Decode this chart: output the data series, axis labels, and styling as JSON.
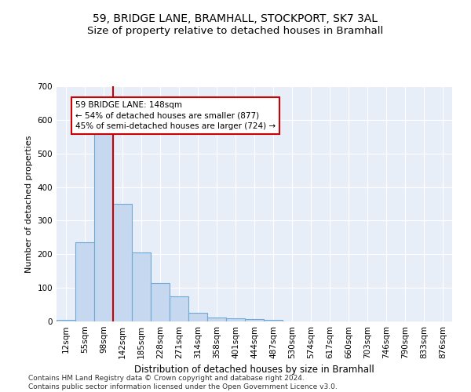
{
  "title1": "59, BRIDGE LANE, BRAMHALL, STOCKPORT, SK7 3AL",
  "title2": "Size of property relative to detached houses in Bramhall",
  "xlabel": "Distribution of detached houses by size in Bramhall",
  "ylabel": "Number of detached properties",
  "categories": [
    "12sqm",
    "55sqm",
    "98sqm",
    "142sqm",
    "185sqm",
    "228sqm",
    "271sqm",
    "314sqm",
    "358sqm",
    "401sqm",
    "444sqm",
    "487sqm",
    "530sqm",
    "574sqm",
    "617sqm",
    "660sqm",
    "703sqm",
    "746sqm",
    "790sqm",
    "833sqm",
    "876sqm"
  ],
  "values": [
    5,
    235,
    590,
    350,
    205,
    115,
    75,
    25,
    12,
    10,
    8,
    5,
    0,
    0,
    0,
    0,
    0,
    0,
    0,
    0,
    0
  ],
  "bar_color": "#c5d8ef",
  "bar_edge_color": "#6faad4",
  "vline_color": "#cc0000",
  "annotation_text": "59 BRIDGE LANE: 148sqm\n← 54% of detached houses are smaller (877)\n45% of semi-detached houses are larger (724) →",
  "annotation_box_color": "#ffffff",
  "annotation_box_edge": "#cc0000",
  "ylim": [
    0,
    700
  ],
  "yticks": [
    0,
    100,
    200,
    300,
    400,
    500,
    600,
    700
  ],
  "background_color": "#e8eef8",
  "grid_color": "#c8d4e8",
  "footer": "Contains HM Land Registry data © Crown copyright and database right 2024.\nContains public sector information licensed under the Open Government Licence v3.0.",
  "title1_fontsize": 10,
  "title2_fontsize": 9.5,
  "xlabel_fontsize": 8.5,
  "ylabel_fontsize": 8,
  "tick_fontsize": 7.5,
  "ann_fontsize": 7.5,
  "footer_fontsize": 6.5
}
